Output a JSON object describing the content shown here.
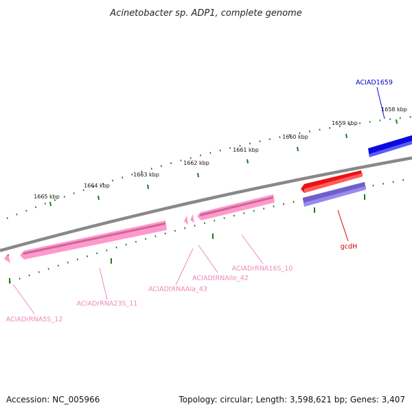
{
  "title": "Acinetobacter sp. ADP1, complete genome",
  "footer": {
    "accession": "Accession: NC_005966",
    "summary": "Topology: circular; Length: 3,598,621 bp; Genes: 3,407"
  },
  "colors": {
    "backbone": "#888888",
    "tick": "#1a7a1a",
    "cds_forward": "#1010e0",
    "cds_reverse_red": "#ee1111",
    "cds_reverse_purple": "#7060cc",
    "rna": "#ff99cc",
    "rna_dark": "#cc6699",
    "label_blue": "#0000cc",
    "label_red": "#cc0000",
    "label_pink": "#ee88bb"
  },
  "kbp_labels": [
    "1665 kbp",
    "1664 kbp",
    "1663 kbp",
    "1662 kbp",
    "1661 kbp",
    "1660 kbp",
    "1659 kbp",
    "1658 kbp"
  ],
  "genes": {
    "aciad1659": "ACIAD1659",
    "gcdh": "gcdH",
    "rna16s": "ACIADrRNA16S_10",
    "trna_ile": "ACIADtRNAIle_42",
    "trna_ala": "ACIADtRNAAla_43",
    "rna23s": "ACIADrRNA23S_11",
    "rna5s": "ACIADrRNA5S_12"
  }
}
